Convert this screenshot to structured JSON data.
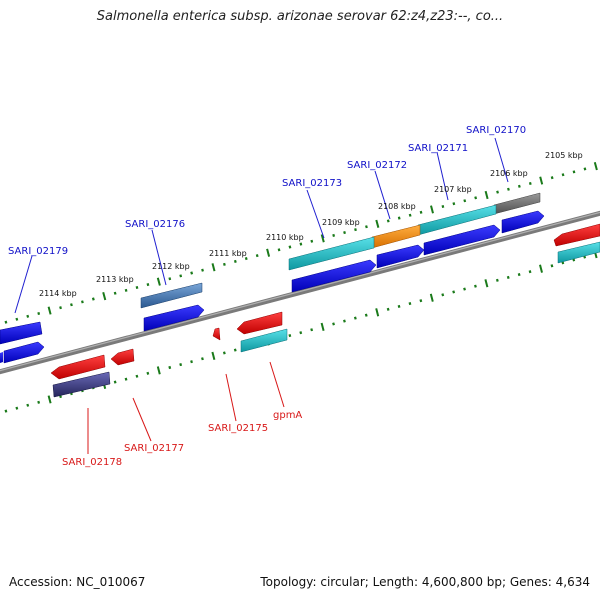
{
  "title": "Salmonella enterica subsp. arizonae serovar 62:z4,z23:--, co...",
  "footer": {
    "accession": "Accession: NC_010067",
    "topology": "Topology: circular; Length: 4,600,800 bp; Genes: 4,634"
  },
  "kbp_labels": [
    "2105 kbp",
    "2106 kbp",
    "2107 kbp",
    "2108 kbp",
    "2109 kbp",
    "2110 kbp",
    "2111 kbp",
    "2112 kbp",
    "2113 kbp",
    "2114 kbp"
  ],
  "gene_labels_top": [
    "SARI_02170",
    "SARI_02171",
    "SARI_02172",
    "SARI_02173",
    "SARI_02176",
    "SARI_02179"
  ],
  "gene_labels_bottom": [
    "gpmA",
    "SARI_02175",
    "SARI_02177",
    "SARI_02178"
  ],
  "colors": {
    "backbone": "#808080",
    "tick": "#1a7a1a",
    "blue_gene": "#0a0ae0",
    "cyan_gene": "#1ab8c0",
    "red_gene": "#e81010",
    "orange_gene": "#f08a10",
    "grey_gene": "#707070",
    "steel_gene": "#4a78b0",
    "navy_gene": "#3a3a8a",
    "blue_label": "#1010c8",
    "red_label": "#d81818"
  }
}
